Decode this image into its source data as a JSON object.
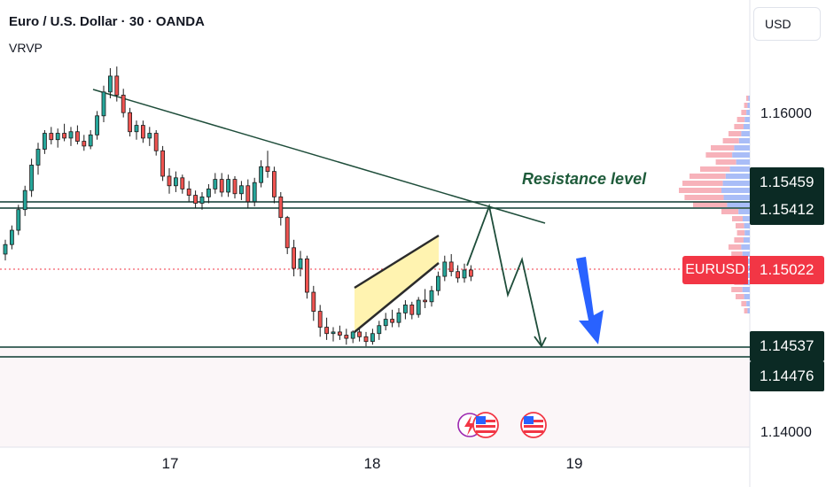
{
  "header": {
    "title": "Euro / U.S. Dollar · 30 · OANDA",
    "indicator": "VRVP",
    "currency": "USD"
  },
  "annotation": {
    "resistance_text": "Resistance level"
  },
  "price_axis": {
    "ticks": [
      "1.16000",
      "1.14000"
    ]
  },
  "price_labels": {
    "current_symbol": "EURUSD",
    "current": "1.15022",
    "resistance_upper": "1.15459",
    "resistance_lower": "1.15412",
    "support_upper": "1.14537",
    "support_lower": "1.14476"
  },
  "time_axis": {
    "ticks": [
      "17",
      "18",
      "19"
    ]
  },
  "colors": {
    "up": "#26a69a",
    "down": "#ef5350",
    "current_price": "#f23645",
    "line": "#0b3a30",
    "arrow": "#2962ff",
    "channel_fill": "#fff3b0"
  },
  "chart_data": {
    "type": "candlestick",
    "title": "Euro / U.S. Dollar · 30 · OANDA",
    "ylim": [
      1.139,
      1.166
    ],
    "levels": {
      "resistance": [
        1.15459,
        1.15412
      ],
      "support": [
        1.14537,
        1.14476
      ],
      "current": 1.15022
    },
    "ohlc": [
      [
        1.1512,
        1.1521,
        1.1508,
        1.1518
      ],
      [
        1.1518,
        1.153,
        1.1515,
        1.1527
      ],
      [
        1.1527,
        1.1543,
        1.1524,
        1.154
      ],
      [
        1.154,
        1.1555,
        1.1536,
        1.1552
      ],
      [
        1.1552,
        1.1572,
        1.1548,
        1.1568
      ],
      [
        1.1568,
        1.1582,
        1.1562,
        1.1578
      ],
      [
        1.1578,
        1.159,
        1.1575,
        1.1588
      ],
      [
        1.1588,
        1.1592,
        1.1581,
        1.1584
      ],
      [
        1.1584,
        1.1591,
        1.1579,
        1.1588
      ],
      [
        1.1588,
        1.1594,
        1.1583,
        1.1585
      ],
      [
        1.1585,
        1.1592,
        1.158,
        1.1589
      ],
      [
        1.1589,
        1.1593,
        1.1581,
        1.1583
      ],
      [
        1.1583,
        1.1587,
        1.1577,
        1.158
      ],
      [
        1.158,
        1.159,
        1.1578,
        1.1587
      ],
      [
        1.1587,
        1.1602,
        1.1584,
        1.1599
      ],
      [
        1.1599,
        1.1618,
        1.1595,
        1.1614
      ],
      [
        1.1614,
        1.1629,
        1.161,
        1.1624
      ],
      [
        1.1624,
        1.163,
        1.1608,
        1.1612
      ],
      [
        1.1612,
        1.1616,
        1.1598,
        1.1601
      ],
      [
        1.1601,
        1.1604,
        1.1586,
        1.1589
      ],
      [
        1.1589,
        1.1596,
        1.1584,
        1.1593
      ],
      [
        1.1593,
        1.1596,
        1.1582,
        1.1585
      ],
      [
        1.1585,
        1.1592,
        1.158,
        1.1588
      ],
      [
        1.1588,
        1.159,
        1.1574,
        1.1577
      ],
      [
        1.1577,
        1.158,
        1.1558,
        1.1561
      ],
      [
        1.1561,
        1.1566,
        1.155,
        1.1555
      ],
      [
        1.1555,
        1.1564,
        1.1551,
        1.156
      ],
      [
        1.156,
        1.1562,
        1.155,
        1.1553
      ],
      [
        1.1553,
        1.1558,
        1.1545,
        1.1549
      ],
      [
        1.1549,
        1.1552,
        1.1541,
        1.1544
      ],
      [
        1.1544,
        1.1551,
        1.154,
        1.1548
      ],
      [
        1.1548,
        1.1556,
        1.1544,
        1.1553
      ],
      [
        1.1553,
        1.1563,
        1.155,
        1.1559
      ],
      [
        1.1559,
        1.1563,
        1.1548,
        1.1551
      ],
      [
        1.1551,
        1.1562,
        1.1548,
        1.1559
      ],
      [
        1.1559,
        1.1561,
        1.1547,
        1.155
      ],
      [
        1.155,
        1.1558,
        1.1546,
        1.1555
      ],
      [
        1.1555,
        1.1559,
        1.1541,
        1.1545
      ],
      [
        1.1545,
        1.156,
        1.1542,
        1.1557
      ],
      [
        1.1557,
        1.1571,
        1.1554,
        1.1567
      ],
      [
        1.1567,
        1.1577,
        1.156,
        1.1564
      ],
      [
        1.1564,
        1.1567,
        1.1544,
        1.1548
      ],
      [
        1.1548,
        1.1551,
        1.153,
        1.1535
      ],
      [
        1.1535,
        1.1536,
        1.1512,
        1.1516
      ],
      [
        1.1516,
        1.1521,
        1.1498,
        1.1503
      ],
      [
        1.1503,
        1.1514,
        1.1498,
        1.1509
      ],
      [
        1.1509,
        1.1511,
        1.1484,
        1.1488
      ],
      [
        1.1488,
        1.1492,
        1.147,
        1.1476
      ],
      [
        1.1476,
        1.148,
        1.146,
        1.1466
      ],
      [
        1.1466,
        1.1472,
        1.1458,
        1.1462
      ],
      [
        1.1462,
        1.1466,
        1.1457,
        1.1463
      ],
      [
        1.1463,
        1.1467,
        1.1458,
        1.1461
      ],
      [
        1.1461,
        1.1465,
        1.1455,
        1.1459
      ],
      [
        1.1459,
        1.1464,
        1.1456,
        1.1463
      ],
      [
        1.1463,
        1.1465,
        1.1457,
        1.146
      ],
      [
        1.146,
        1.1463,
        1.1454,
        1.1457
      ],
      [
        1.1457,
        1.1465,
        1.1455,
        1.1462
      ],
      [
        1.1462,
        1.147,
        1.1458,
        1.1467
      ],
      [
        1.1467,
        1.1475,
        1.1464,
        1.1471
      ],
      [
        1.1471,
        1.1477,
        1.1466,
        1.1469
      ],
      [
        1.1469,
        1.1478,
        1.1466,
        1.1475
      ],
      [
        1.1475,
        1.1483,
        1.1471,
        1.148
      ],
      [
        1.148,
        1.1482,
        1.1471,
        1.1474
      ],
      [
        1.1474,
        1.1485,
        1.1472,
        1.1483
      ],
      [
        1.1483,
        1.149,
        1.1478,
        1.1482
      ],
      [
        1.1482,
        1.1492,
        1.1479,
        1.1489
      ],
      [
        1.1489,
        1.1501,
        1.1486,
        1.1498
      ],
      [
        1.1498,
        1.1511,
        1.1495,
        1.1507
      ],
      [
        1.1507,
        1.1512,
        1.1498,
        1.1501
      ],
      [
        1.1501,
        1.1505,
        1.1494,
        1.1497
      ],
      [
        1.1497,
        1.1506,
        1.1494,
        1.1502
      ],
      [
        1.1502,
        1.1505,
        1.1495,
        1.1498
      ]
    ],
    "price_scale_ref": {
      "price_1": 1.16,
      "y_1": 129,
      "price_2": 1.14,
      "y_2": 488
    }
  }
}
